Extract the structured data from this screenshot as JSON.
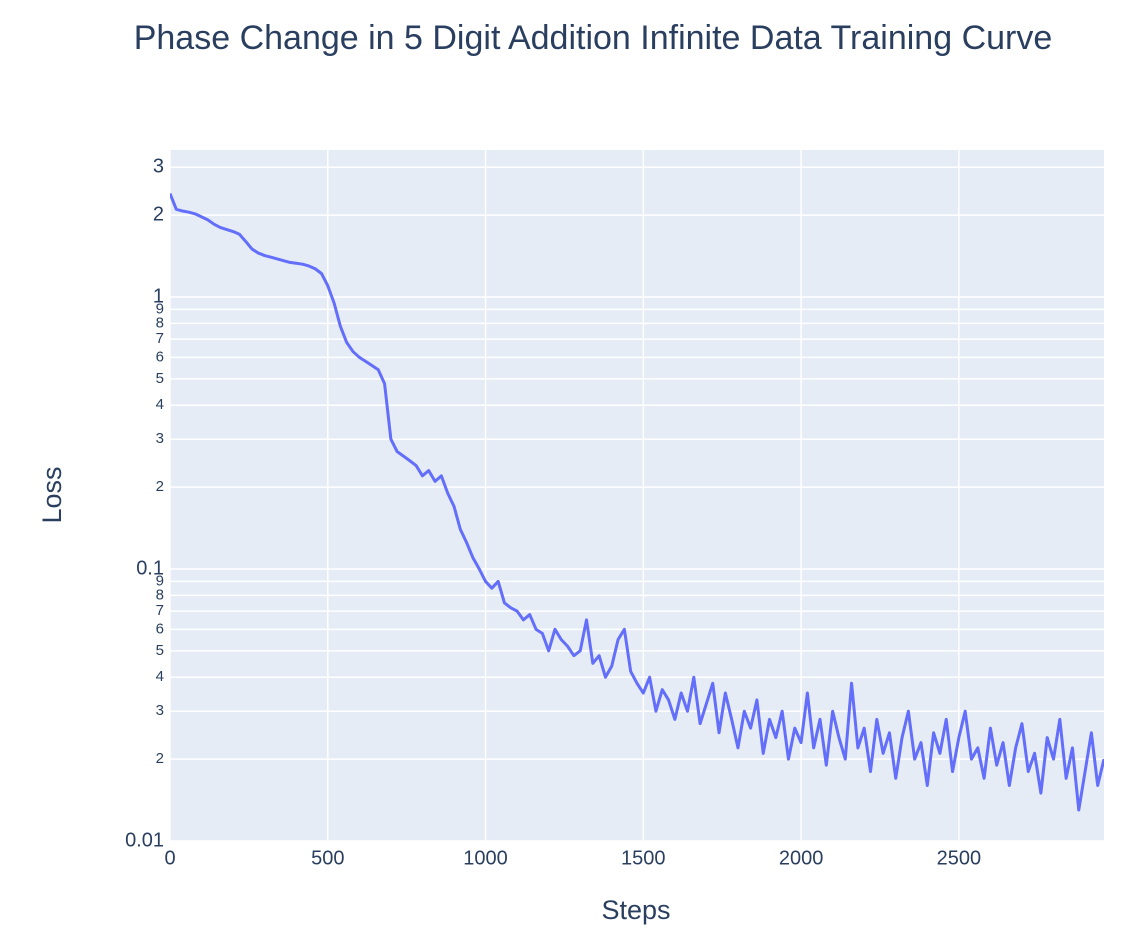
{
  "chart_data": {
    "type": "line",
    "title": "Phase Change in 5 Digit Addition Infinite Data Training Curve",
    "xlabel": "Steps",
    "ylabel": "Loss",
    "color": "#636efa",
    "log_y": true,
    "grid": true,
    "x": [
      0,
      20,
      40,
      60,
      80,
      100,
      120,
      140,
      160,
      180,
      200,
      220,
      240,
      260,
      280,
      300,
      320,
      340,
      360,
      380,
      400,
      420,
      440,
      460,
      480,
      500,
      520,
      540,
      560,
      580,
      600,
      620,
      640,
      660,
      680,
      700,
      720,
      740,
      760,
      780,
      800,
      820,
      840,
      860,
      880,
      900,
      920,
      940,
      960,
      980,
      1000,
      1020,
      1040,
      1060,
      1080,
      1100,
      1120,
      1140,
      1160,
      1180,
      1200,
      1220,
      1240,
      1260,
      1280,
      1300,
      1320,
      1340,
      1360,
      1380,
      1400,
      1420,
      1440,
      1460,
      1480,
      1500,
      1520,
      1540,
      1560,
      1580,
      1600,
      1620,
      1640,
      1660,
      1680,
      1700,
      1720,
      1740,
      1760,
      1780,
      1800,
      1820,
      1840,
      1860,
      1880,
      1900,
      1920,
      1940,
      1960,
      1980,
      2000,
      2020,
      2040,
      2060,
      2080,
      2100,
      2120,
      2140,
      2160,
      2180,
      2200,
      2220,
      2240,
      2260,
      2280,
      2300,
      2320,
      2340,
      2360,
      2380,
      2400,
      2420,
      2440,
      2460,
      2480,
      2500,
      2520,
      2540,
      2560,
      2580,
      2600,
      2620,
      2640,
      2660,
      2680,
      2700,
      2720,
      2740,
      2760,
      2780,
      2800,
      2820,
      2840,
      2860,
      2880,
      2900,
      2920,
      2940,
      2960
    ],
    "values": [
      2.4,
      2.1,
      2.07,
      2.05,
      2.02,
      1.97,
      1.92,
      1.85,
      1.8,
      1.77,
      1.74,
      1.7,
      1.6,
      1.5,
      1.45,
      1.42,
      1.4,
      1.38,
      1.36,
      1.34,
      1.33,
      1.32,
      1.3,
      1.27,
      1.22,
      1.1,
      0.95,
      0.78,
      0.68,
      0.63,
      0.6,
      0.58,
      0.56,
      0.54,
      0.48,
      0.3,
      0.27,
      0.26,
      0.25,
      0.24,
      0.22,
      0.23,
      0.21,
      0.22,
      0.19,
      0.17,
      0.14,
      0.125,
      0.11,
      0.1,
      0.09,
      0.085,
      0.09,
      0.075,
      0.072,
      0.07,
      0.065,
      0.068,
      0.06,
      0.058,
      0.05,
      0.06,
      0.055,
      0.052,
      0.048,
      0.05,
      0.065,
      0.045,
      0.048,
      0.04,
      0.044,
      0.055,
      0.06,
      0.042,
      0.038,
      0.035,
      0.04,
      0.03,
      0.036,
      0.033,
      0.028,
      0.035,
      0.03,
      0.04,
      0.027,
      0.032,
      0.038,
      0.025,
      0.035,
      0.028,
      0.022,
      0.03,
      0.026,
      0.033,
      0.021,
      0.028,
      0.024,
      0.03,
      0.02,
      0.026,
      0.023,
      0.035,
      0.022,
      0.028,
      0.019,
      0.03,
      0.024,
      0.02,
      0.038,
      0.022,
      0.026,
      0.018,
      0.028,
      0.021,
      0.025,
      0.017,
      0.024,
      0.03,
      0.02,
      0.023,
      0.016,
      0.025,
      0.021,
      0.028,
      0.018,
      0.024,
      0.03,
      0.02,
      0.022,
      0.017,
      0.026,
      0.019,
      0.023,
      0.016,
      0.022,
      0.027,
      0.018,
      0.021,
      0.015,
      0.024,
      0.02,
      0.028,
      0.017,
      0.022,
      0.013,
      0.018,
      0.025,
      0.016,
      0.02
    ],
    "xlim": [
      0,
      2960
    ],
    "xticks": [
      0,
      500,
      1000,
      1500,
      2000,
      2500
    ],
    "ylim": [
      0.01,
      3.47
    ],
    "yticks": [
      0.01,
      {
        "value": 0.02,
        "label": "2"
      },
      {
        "value": 0.03,
        "label": "3"
      },
      {
        "value": 0.04,
        "label": "4"
      },
      {
        "value": 0.05,
        "label": "5"
      },
      {
        "value": 0.06,
        "label": "6"
      },
      {
        "value": 0.07,
        "label": "7"
      },
      {
        "value": 0.08,
        "label": "8"
      },
      {
        "value": 0.09,
        "label": "9"
      },
      0.1,
      {
        "value": 0.2,
        "label": "2"
      },
      {
        "value": 0.3,
        "label": "3"
      },
      {
        "value": 0.4,
        "label": "4"
      },
      {
        "value": 0.5,
        "label": "5"
      },
      {
        "value": 0.6,
        "label": "6"
      },
      {
        "value": 0.7,
        "label": "7"
      },
      {
        "value": 0.8,
        "label": "8"
      },
      {
        "value": 0.9,
        "label": "9"
      },
      1,
      2,
      3
    ]
  }
}
